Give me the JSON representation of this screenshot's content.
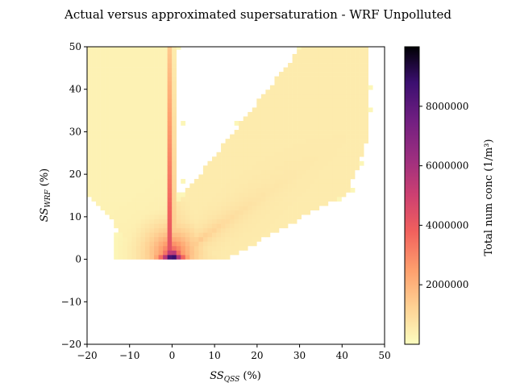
{
  "chart_data": {
    "type": "heatmap",
    "title": "Actual versus approximated supersaturation - WRF Unpolluted",
    "xlabel": {
      "base": "SS",
      "sub": "QSS",
      "unit": " (%)"
    },
    "ylabel": {
      "base": "SS",
      "sub": "WRF",
      "unit": " (%)"
    },
    "xlim": [
      -20,
      50
    ],
    "ylim": [
      -20,
      50
    ],
    "x_ticks": [
      -20,
      -10,
      0,
      10,
      20,
      30,
      40,
      50
    ],
    "y_ticks": [
      -20,
      -10,
      0,
      10,
      20,
      30,
      40,
      50
    ],
    "colorbar": {
      "label": "Total num conc (1/m³)",
      "range": [
        0,
        10000000
      ],
      "ticks": [
        2000000,
        4000000,
        6000000,
        8000000
      ],
      "colormap": "magma_r"
    },
    "grid": false,
    "features": [
      {
        "name": "dense vertical spike",
        "x": 0,
        "y_range": [
          0.5,
          50
        ],
        "level": 0.75
      },
      {
        "name": "near-origin dense core",
        "x_range": [
          -7,
          7
        ],
        "y_range": [
          0.5,
          4
        ],
        "level": 0.9
      },
      {
        "name": "upper-left fan",
        "x_range": [
          -20,
          0
        ],
        "y_range": [
          0.5,
          50
        ],
        "level": 0.05
      },
      {
        "name": "rising right wedge",
        "x_range": [
          0,
          48
        ],
        "y_range": [
          0,
          45
        ],
        "level": 0.08
      }
    ]
  }
}
